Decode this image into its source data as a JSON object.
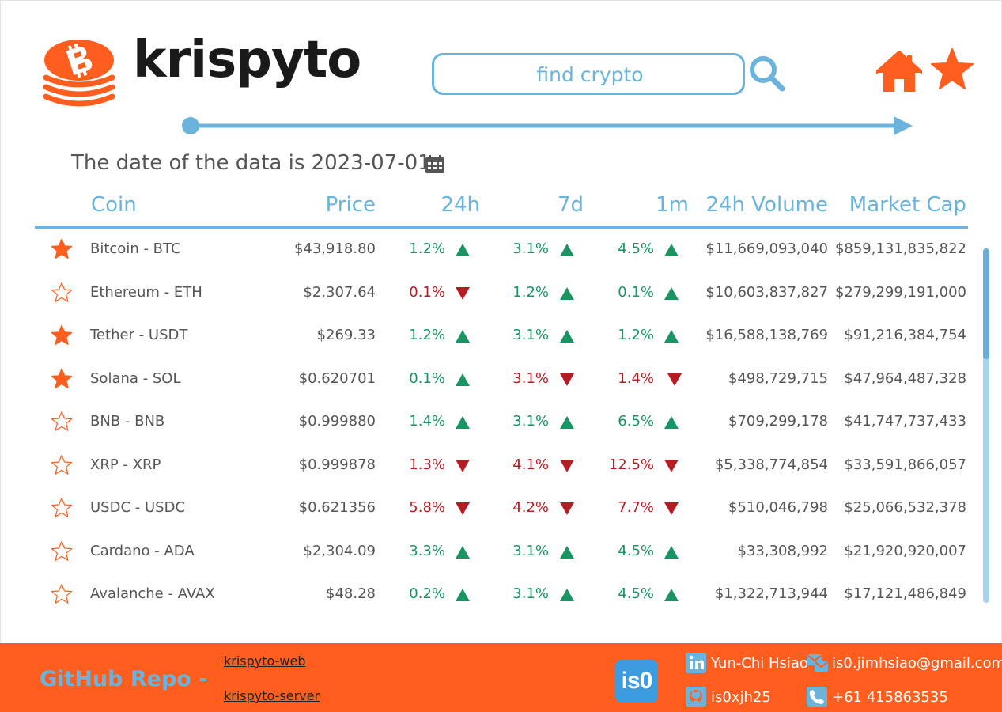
{
  "header": {
    "brand": "krispyto",
    "search_placeholder": "find crypto"
  },
  "date_label": "The date of the data is 2023-07-01",
  "columns": {
    "coin": "Coin",
    "price": "Price",
    "h24": "24h",
    "d7": "7d",
    "m1": "1m",
    "volume": "24h Volume",
    "market_cap": "Market Cap"
  },
  "rows": [
    {
      "favorite": true,
      "coin": "Bitcoin - BTC",
      "price": "$43,918.80",
      "h24": "1.2%",
      "h24_dir": "up",
      "d7": "3.1%",
      "d7_dir": "up",
      "m1": "4.5%",
      "m1_dir": "up",
      "volume": "$11,669,093,040",
      "market_cap": "$859,131,835,822"
    },
    {
      "favorite": false,
      "coin": "Ethereum - ETH",
      "price": "$2,307.64",
      "h24": "0.1%",
      "h24_dir": "down",
      "d7": "1.2%",
      "d7_dir": "up",
      "m1": "0.1%",
      "m1_dir": "up",
      "volume": "$10,603,837,827",
      "market_cap": "$279,299,191,000"
    },
    {
      "favorite": true,
      "coin": "Tether - USDT",
      "price": "$269.33",
      "h24": "1.2%",
      "h24_dir": "up",
      "d7": "3.1%",
      "d7_dir": "up",
      "m1": "1.2%",
      "m1_dir": "up",
      "volume": "$16,588,138,769",
      "market_cap": "$91,216,384,754"
    },
    {
      "favorite": true,
      "coin": "Solana - SOL",
      "price": "$0.620701",
      "h24": "0.1%",
      "h24_dir": "up",
      "d7": "3.1%",
      "d7_dir": "down",
      "m1": "1.4%",
      "m1_dir": "down",
      "volume": "$498,729,715",
      "market_cap": "$47,964,487,328"
    },
    {
      "favorite": false,
      "coin": "BNB - BNB",
      "price": "$0.999880",
      "h24": "1.4%",
      "h24_dir": "up",
      "d7": "3.1%",
      "d7_dir": "up",
      "m1": "6.5%",
      "m1_dir": "up",
      "volume": "$709,299,178",
      "market_cap": "$41,747,737,433"
    },
    {
      "favorite": false,
      "coin": "XRP - XRP",
      "price": "$0.999878",
      "h24": "1.3%",
      "h24_dir": "down",
      "d7": "4.1%",
      "d7_dir": "down",
      "m1": "12.5%",
      "m1_dir": "down",
      "volume": "$5,338,774,854",
      "market_cap": "$33,591,866,057"
    },
    {
      "favorite": false,
      "coin": "USDC - USDC",
      "price": "$0.621356",
      "h24": "5.8%",
      "h24_dir": "down",
      "d7": "4.2%",
      "d7_dir": "down",
      "m1": "7.7%",
      "m1_dir": "down",
      "volume": "$510,046,798",
      "market_cap": "$25,066,532,378"
    },
    {
      "favorite": false,
      "coin": "Cardano - ADA",
      "price": "$2,304.09",
      "h24": "3.3%",
      "h24_dir": "up",
      "d7": "3.1%",
      "d7_dir": "up",
      "m1": "4.5%",
      "m1_dir": "up",
      "volume": "$33,308,992",
      "market_cap": "$21,920,920,007"
    },
    {
      "favorite": false,
      "coin": "Avalanche - AVAX",
      "price": "$48.28",
      "h24": "0.2%",
      "h24_dir": "up",
      "d7": "3.1%",
      "d7_dir": "up",
      "m1": "4.5%",
      "m1_dir": "up",
      "volume": "$1,322,713,944",
      "market_cap": "$17,121,486,849"
    }
  ],
  "footer": {
    "github_label": "GitHub Repo -",
    "repo_web": "krispyto-web",
    "repo_server": "krispyto-server",
    "badge": "is0",
    "linkedin_name": "Yun-Chi Hsiao",
    "email": "is0.jimhsiao@gmail.com",
    "github_user": "is0xjh25",
    "phone": "+61 415863535"
  },
  "colors": {
    "accent_blue": "#6bb3da",
    "accent_orange": "#ff5e1f",
    "up_green": "#1a9462",
    "down_red": "#b51d24"
  },
  "icons": {
    "logo": "bitcoin-stack-icon",
    "search": "search-icon",
    "home": "home-icon",
    "favorites": "star-icon",
    "calendar": "calendar-icon",
    "linkedin": "linkedin-icon",
    "email": "email-icon",
    "github": "github-icon",
    "phone": "phone-icon"
  }
}
